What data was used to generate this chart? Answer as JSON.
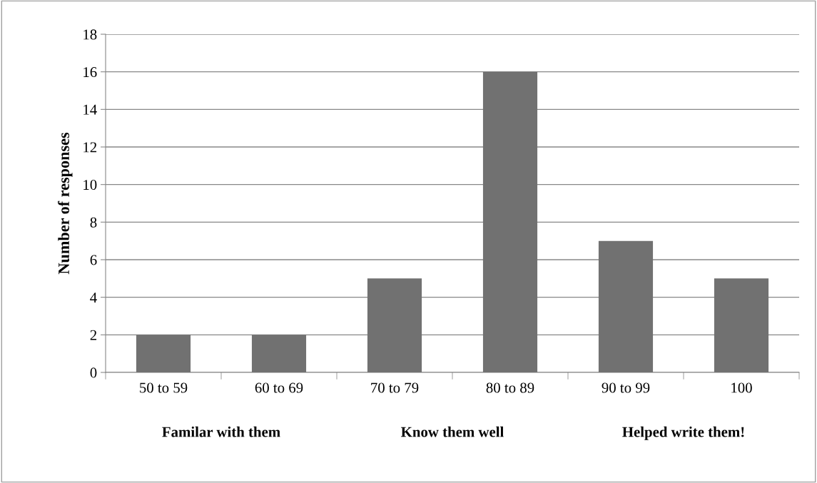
{
  "chart_data": {
    "type": "bar",
    "ylabel": "Number of responses",
    "categories": [
      "50 to 59",
      "60 to 69",
      "70 to 79",
      "80 to 89",
      "90 to 99",
      "100"
    ],
    "values": [
      2,
      2,
      5,
      16,
      7,
      5
    ],
    "color": "#717171",
    "ylim": [
      0,
      18
    ],
    "yticks": [
      0,
      2,
      4,
      6,
      8,
      10,
      12,
      14,
      16,
      18
    ],
    "grid": "y",
    "legend": false,
    "annotations": [
      "Familar with them",
      "Know them well",
      "Helped write them!"
    ]
  }
}
